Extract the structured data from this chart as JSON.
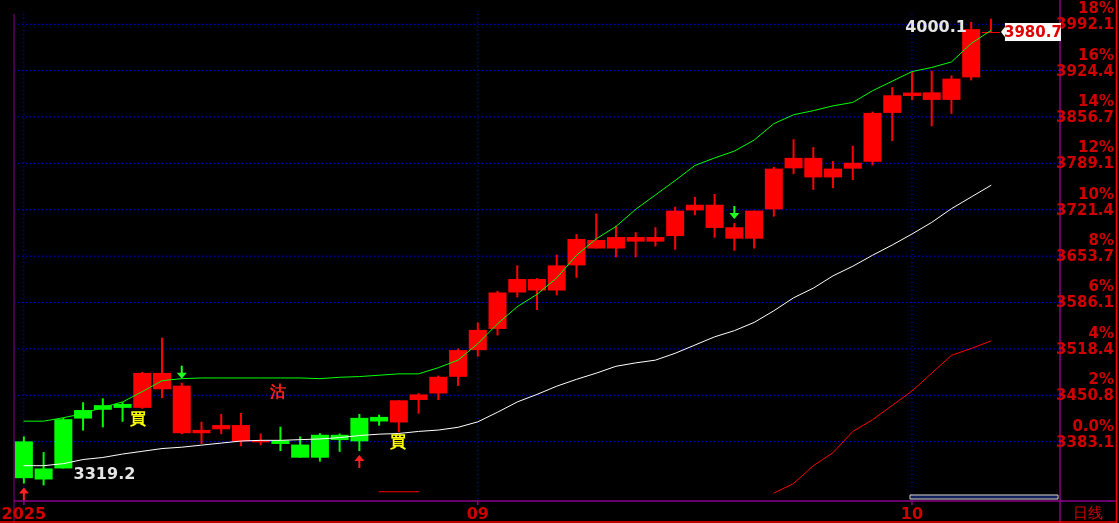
{
  "chart_data": {
    "type": "candlestick",
    "categories": [
      "2025",
      null,
      null,
      null,
      null,
      null,
      null,
      null,
      null,
      null,
      null,
      null,
      null,
      null,
      null,
      null,
      null,
      null,
      null,
      null,
      null,
      null,
      null,
      "09",
      null,
      null,
      null,
      null,
      null,
      null,
      null,
      null,
      null,
      null,
      null,
      null,
      null,
      null,
      null,
      null,
      null,
      null,
      null,
      null,
      null,
      "10",
      null,
      null,
      null,
      null
    ],
    "ohlc": [
      [
        3383.5,
        3390.7,
        3322.0,
        3329.8
      ],
      [
        3344.0,
        3367.8,
        3319.2,
        3327.9
      ],
      [
        3415.9,
        3417.8,
        3344.0,
        3344.0
      ],
      [
        3429.2,
        3440.6,
        3399.2,
        3416.8
      ],
      [
        3436.3,
        3446.3,
        3403.9,
        3429.6
      ],
      [
        3438.1,
        3440.6,
        3412.1,
        3432.4
      ],
      [
        3432.4,
        3484.8,
        3431.0,
        3483.4
      ],
      [
        3459.5,
        3534.7,
        3446.7,
        3483.4
      ],
      [
        3395.4,
        3469.1,
        3393.9,
        3464.8
      ],
      [
        3395.4,
        3412.1,
        3379.7,
        3400.2
      ],
      [
        3401.1,
        3423.5,
        3393.9,
        3407.3
      ],
      [
        3383.5,
        3424.9,
        3376.4,
        3407.3
      ],
      [
        3382.1,
        3394.9,
        3377.8,
        3384.5
      ],
      [
        3384.9,
        3404.9,
        3369.3,
        3379.7
      ],
      [
        3378.8,
        3390.7,
        3359.7,
        3359.7
      ],
      [
        3393.1,
        3395.4,
        3354.0,
        3359.7
      ],
      [
        3393.1,
        3394.9,
        3368.3,
        3385.4
      ],
      [
        3417.8,
        3423.5,
        3369.3,
        3383.5
      ],
      [
        3419.2,
        3422.5,
        3406.3,
        3412.5
      ],
      [
        3411.1,
        3443.4,
        3396.8,
        3443.4
      ],
      [
        3443.9,
        3453.8,
        3423.9,
        3452.0
      ],
      [
        3453.4,
        3479.5,
        3443.9,
        3477.7
      ],
      [
        3477.7,
        3519.0,
        3464.4,
        3516.6
      ],
      [
        3516.6,
        3557.1,
        3507.2,
        3546.1
      ],
      [
        3547.5,
        3603.2,
        3538.0,
        3600.7
      ],
      [
        3600.7,
        3640.2,
        3593.6,
        3620.3
      ],
      [
        3603.6,
        3621.3,
        3575.1,
        3620.3
      ],
      [
        3603.6,
        3655.9,
        3596.5,
        3640.2
      ],
      [
        3640.2,
        3685.9,
        3622.1,
        3678.8
      ],
      [
        3664.9,
        3715.8,
        3664.9,
        3677.3
      ],
      [
        3664.9,
        3698.3,
        3652.1,
        3681.6
      ],
      [
        3674.9,
        3688.7,
        3652.1,
        3681.6
      ],
      [
        3674.9,
        3695.9,
        3667.8,
        3681.6
      ],
      [
        3683.0,
        3725.8,
        3663.1,
        3720.1
      ],
      [
        3720.5,
        3740.1,
        3713.4,
        3728.7
      ],
      [
        3694.9,
        3744.4,
        3680.6,
        3728.7
      ],
      [
        3679.2,
        3702.0,
        3661.6,
        3695.9
      ],
      [
        3679.2,
        3720.1,
        3664.9,
        3720.1
      ],
      [
        3722.0,
        3783.9,
        3711.5,
        3781.4
      ],
      [
        3781.9,
        3824.2,
        3773.3,
        3797.1
      ],
      [
        3768.6,
        3812.8,
        3750.5,
        3797.1
      ],
      [
        3768.6,
        3792.4,
        3752.9,
        3781.4
      ],
      [
        3781.4,
        3814.7,
        3764.8,
        3790.0
      ],
      [
        3791.4,
        3864.6,
        3786.1,
        3862.7
      ],
      [
        3862.7,
        3900.2,
        3821.8,
        3888.4
      ],
      [
        3887.4,
        3922.2,
        3881.7,
        3892.3
      ],
      [
        3881.7,
        3924.1,
        3843.2,
        3892.7
      ],
      [
        3881.7,
        3917.4,
        3861.3,
        3912.7
      ],
      [
        3914.5,
        3995.4,
        3910.2,
        3984.9
      ],
      [
        3979.8,
        4000.1,
        3979.8,
        3980.7
      ]
    ],
    "colors": [
      "#00ff00",
      "#00ff00",
      "#00ff00",
      "#00ff00",
      "#00ff00",
      "#00ff00",
      "#ff0000",
      "#ff0000",
      "#ff0000",
      "#ff0000",
      "#ff0000",
      "#ff0000",
      "#ff0000",
      "#00ff00",
      "#00ff00",
      "#00ff00",
      "#00ff00",
      "#00ff00",
      "#00ff00",
      "#ff0000",
      "#ff0000",
      "#ff0000",
      "#ff0000",
      "#ff0000",
      "#ff0000",
      "#ff0000",
      "#ff0000",
      "#ff0000",
      "#ff0000",
      "#ff0000",
      "#ff0000",
      "#ff0000",
      "#ff0000",
      "#ff0000",
      "#ff0000",
      "#ff0000",
      "#ff0000",
      "#ff0000",
      "#ff0000",
      "#ff0000",
      "#ff0000",
      "#ff0000",
      "#ff0000",
      "#ff0000",
      "#ff0000",
      "#ff0000",
      "#ff0000",
      "#ff0000",
      "#ff0000",
      "#ff0000"
    ],
    "series": [
      {
        "type": "line",
        "color": "#00ff00",
        "values": [
          3413,
          3413,
          3418,
          3424,
          3433,
          3441,
          3456,
          3472,
          3475,
          3476,
          3476,
          3476,
          3476,
          3476,
          3476,
          3475,
          3477,
          3478,
          3480,
          3482,
          3482,
          3491,
          3502,
          3526,
          3555,
          3580,
          3598,
          3622,
          3655,
          3679,
          3697,
          3722,
          3743,
          3764,
          3786,
          3797,
          3807,
          3823,
          3847,
          3860,
          3866,
          3873,
          3878,
          3895,
          3909,
          3923,
          3929,
          3937,
          3964,
          3983
        ]
      },
      {
        "type": "line",
        "color": "#ffffff",
        "values": [
          3348,
          3348,
          3351,
          3357,
          3360,
          3365,
          3369,
          3373,
          3375,
          3378,
          3381,
          3384,
          3385,
          3385,
          3386,
          3387,
          3389,
          3392,
          3394,
          3395,
          3398,
          3400,
          3404,
          3412,
          3426,
          3441,
          3452,
          3464,
          3474,
          3483,
          3493,
          3498,
          3502,
          3512,
          3524,
          3536,
          3545,
          3557,
          3574,
          3593,
          3607,
          3625,
          3639,
          3655,
          3670,
          3686,
          3703,
          3723,
          3740,
          3757
        ]
      },
      {
        "type": "line",
        "color": "#ff0000",
        "values": [
          null,
          null,
          null,
          null,
          null,
          null,
          null,
          null,
          null,
          null,
          null,
          null,
          null,
          null,
          null,
          null,
          null,
          null,
          null,
          null,
          null,
          null,
          null,
          null,
          null,
          null,
          null,
          null,
          null,
          null,
          null,
          null,
          null,
          null,
          null,
          null,
          null,
          null,
          3308,
          3322,
          3348,
          3367,
          3398,
          3415,
          3436,
          3457,
          3483,
          3509,
          3519,
          3530
        ]
      },
      {
        "type": "line",
        "color": "#ff0000",
        "values": [
          null,
          null,
          null,
          null,
          null,
          null,
          null,
          null,
          null,
          null,
          null,
          null,
          null,
          null,
          null,
          null,
          null,
          null,
          3310,
          3310,
          3310,
          null,
          null,
          null,
          null,
          null,
          null,
          null,
          null,
          null,
          null,
          null,
          null,
          null,
          null,
          null,
          null,
          null,
          null,
          null,
          null,
          null,
          null,
          null,
          null,
          null,
          null,
          null,
          null,
          null
        ]
      }
    ],
    "ylim": [
      3296.5,
      4007
    ],
    "yticks": [
      3383.1,
      3450.8,
      3518.4,
      3586.1,
      3653.7,
      3721.4,
      3789.1,
      3856.7,
      3924.4,
      3992.1
    ],
    "y2lim": [
      -2.56,
      18.44
    ],
    "y2ticks": [
      {
        "value": 0,
        "label": "0.0%"
      },
      {
        "value": 2,
        "label": "2%"
      },
      {
        "value": 4,
        "label": "4%"
      },
      {
        "value": 6,
        "label": "6%"
      },
      {
        "value": 8,
        "label": "8%"
      },
      {
        "value": 10,
        "label": "10%"
      },
      {
        "value": 12,
        "label": "12%"
      },
      {
        "value": 14,
        "label": "14%"
      },
      {
        "value": 16,
        "label": "16%"
      },
      {
        "value": 18,
        "label": "18%"
      }
    ],
    "grid": true,
    "annotations": [
      "4000.1",
      "3319.2",
      "3980.7",
      "買",
      "沽",
      "買",
      "日线"
    ]
  }
}
